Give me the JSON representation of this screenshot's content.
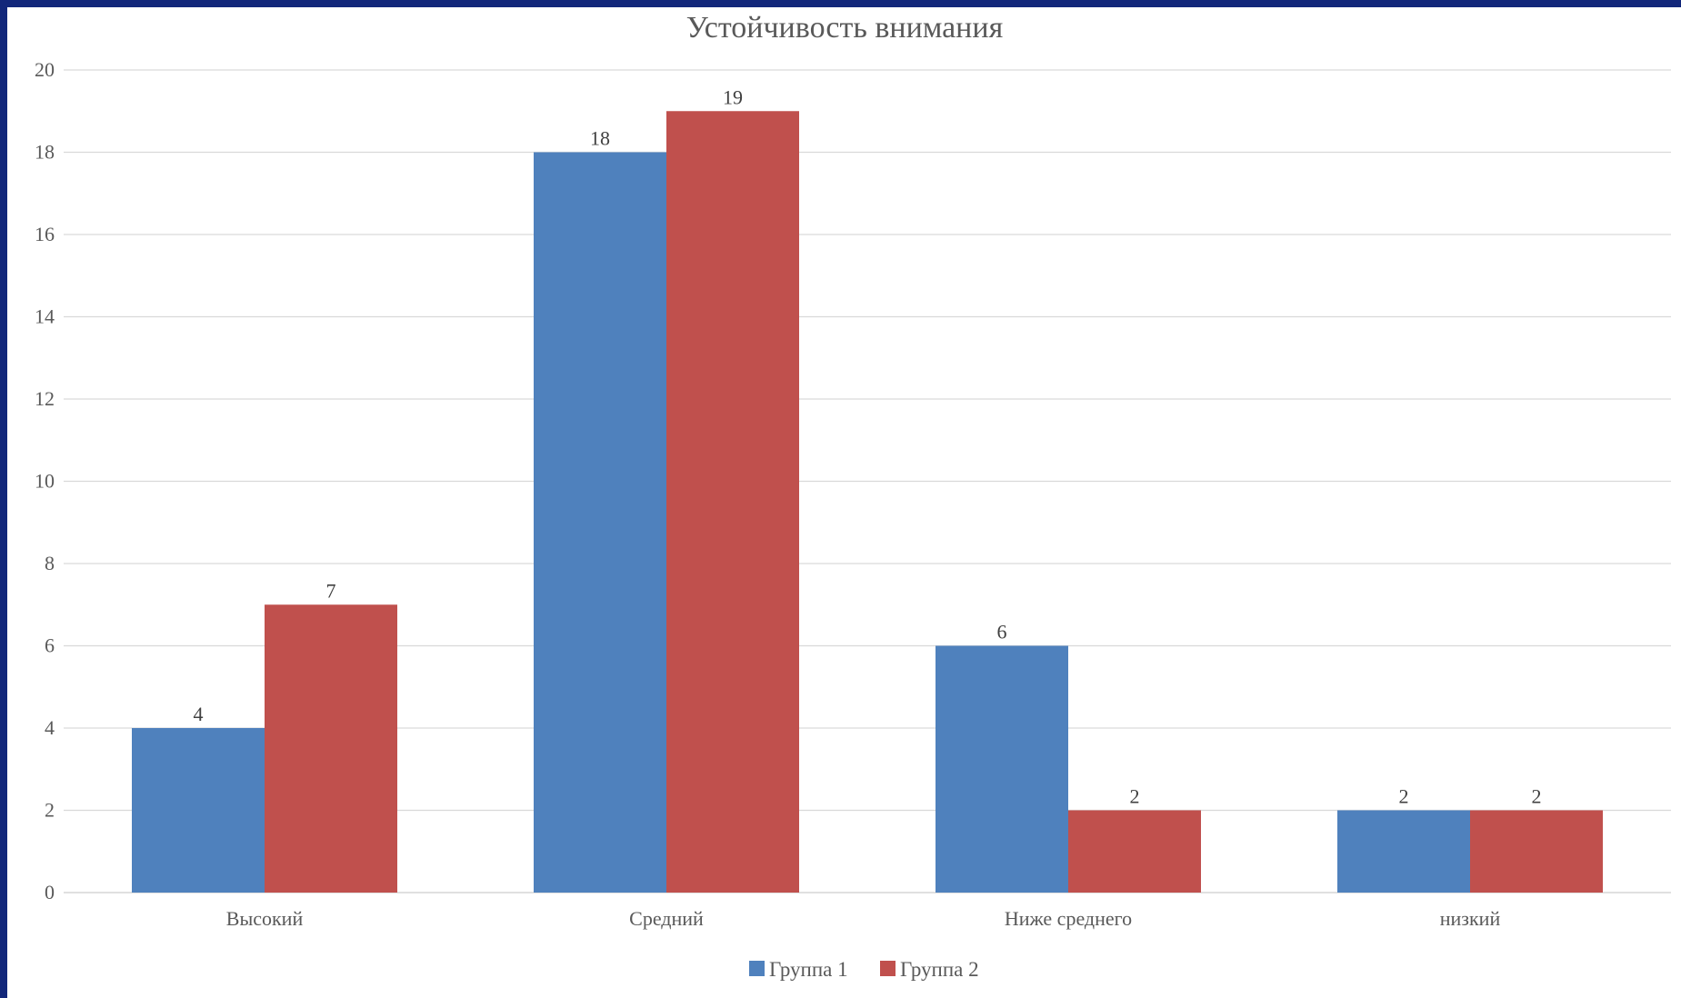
{
  "chart_data": {
    "type": "bar",
    "title": "Устойчивость внимания",
    "categories": [
      "Высокий",
      "Средний",
      "Ниже среднего",
      "низкий"
    ],
    "series": [
      {
        "name": "Группа 1",
        "values": [
          4,
          18,
          6,
          2
        ],
        "color": "#4f81bd"
      },
      {
        "name": "Группа 2",
        "values": [
          7,
          19,
          2,
          2
        ],
        "color": "#c0504d"
      }
    ],
    "ylim": [
      0,
      20
    ],
    "yticks": [
      0,
      2,
      4,
      6,
      8,
      10,
      12,
      14,
      16,
      18,
      20
    ],
    "grid": true,
    "legend_position": "bottom",
    "data_labels": true,
    "gridline_color": "#d9d9d9"
  }
}
